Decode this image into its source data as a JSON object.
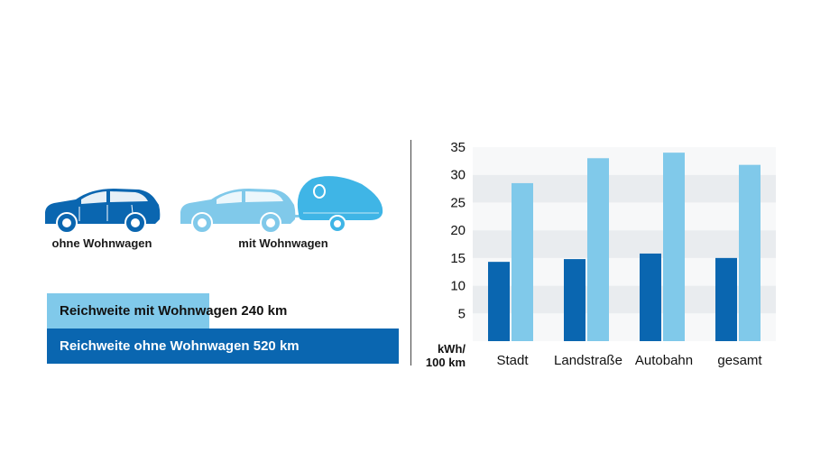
{
  "colors": {
    "dark_blue": "#0a66b0",
    "light_blue": "#80c9ea",
    "band": "#e9ecef"
  },
  "cars": {
    "without_label": "ohne Wohnwagen",
    "with_label": "mit Wohnwagen"
  },
  "ranges": {
    "with_trailer": {
      "label": "Reichweite mit Wohnwagen 240 km",
      "km": 240
    },
    "without_trailer": {
      "label": "Reichweite ohne Wohnwagen 520 km",
      "km": 520
    }
  },
  "chart_data": {
    "type": "bar",
    "categories": [
      "Stadt",
      "Landstraße",
      "Autobahn",
      "gesamt"
    ],
    "series": [
      {
        "name": "ohne Wohnwagen",
        "color": "#0a66b0",
        "values": [
          14.3,
          14.8,
          15.8,
          15.0
        ]
      },
      {
        "name": "mit Wohnwagen",
        "color": "#80c9ea",
        "values": [
          28.5,
          33.0,
          34.0,
          31.8
        ]
      }
    ],
    "yticks": [
      5,
      10,
      15,
      20,
      25,
      30,
      35
    ],
    "ylim": [
      0,
      35
    ],
    "ylabel_line1": "kWh/",
    "ylabel_line2": "100 km",
    "grid": "alternating bands"
  }
}
